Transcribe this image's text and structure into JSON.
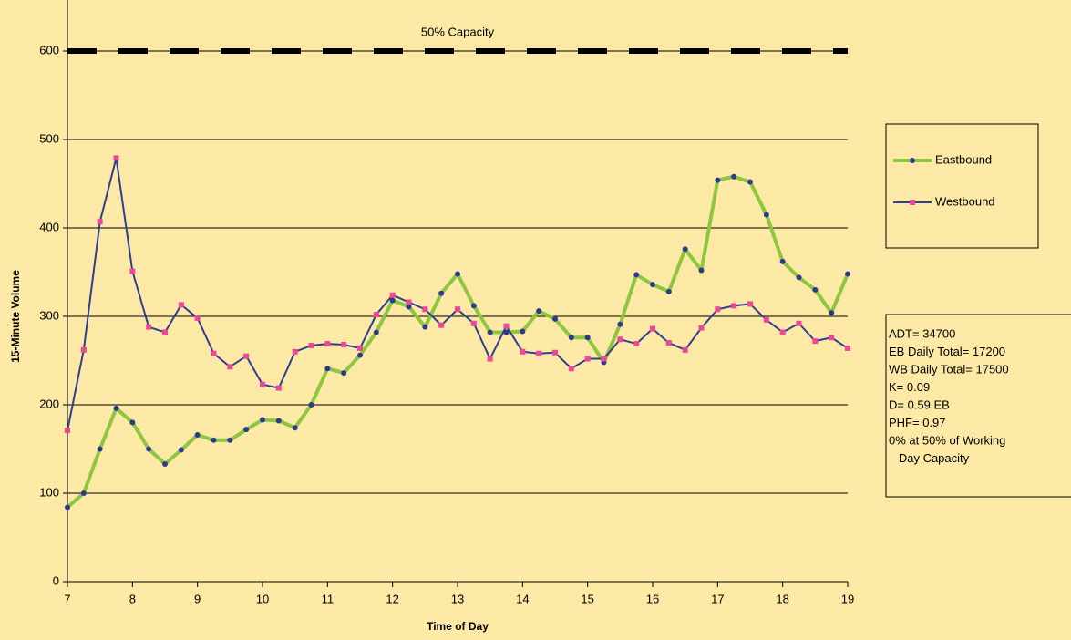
{
  "chart_data": {
    "type": "line",
    "xlabel": "Time of Day",
    "ylabel": "15-Minute Volume",
    "x": [
      7,
      7.25,
      7.5,
      7.75,
      8,
      8.25,
      8.5,
      8.75,
      9,
      9.25,
      9.5,
      9.75,
      10,
      10.25,
      10.5,
      10.75,
      11,
      11.25,
      11.5,
      11.75,
      12,
      12.25,
      12.5,
      12.75,
      13,
      13.25,
      13.5,
      13.75,
      14,
      14.25,
      14.5,
      14.75,
      15,
      15.25,
      15.5,
      15.75,
      16,
      16.25,
      16.5,
      16.75,
      17,
      17.25,
      17.5,
      17.75,
      18,
      18.25,
      18.5,
      18.75,
      19
    ],
    "series": [
      {
        "name": "Eastbound",
        "color": "#8dc63f",
        "marker_color": "#2b3990",
        "line_width": 4,
        "marker": "circle",
        "values": [
          84,
          100,
          150,
          196,
          180,
          150,
          133,
          149,
          166,
          160,
          160,
          172,
          183,
          182,
          174,
          200,
          241,
          236,
          256,
          282,
          318,
          311,
          288,
          326,
          348,
          312,
          282,
          282,
          283,
          306,
          297,
          276,
          276,
          248,
          291,
          347,
          336,
          328,
          376,
          352,
          454,
          458,
          452,
          415,
          362,
          344,
          330,
          304,
          348
        ]
      },
      {
        "name": "Westbound",
        "color": "#2e3f8f",
        "marker_color": "#ec4899",
        "line_width": 2,
        "marker": "square",
        "values": [
          171,
          262,
          407,
          479,
          351,
          288,
          282,
          313,
          298,
          258,
          243,
          255,
          223,
          219,
          260,
          267,
          269,
          268,
          264,
          302,
          324,
          316,
          308,
          290,
          308,
          292,
          252,
          289,
          260,
          258,
          259,
          241,
          252,
          252,
          274,
          269,
          286,
          270,
          262,
          287,
          308,
          312,
          314,
          296,
          282,
          292,
          272,
          276,
          264
        ]
      }
    ],
    "reference_line": {
      "value": 600,
      "label": "50% Capacity",
      "color": "#000000"
    },
    "xlim": [
      7,
      19
    ],
    "xticks": [
      7,
      8,
      9,
      10,
      11,
      12,
      13,
      14,
      15,
      16,
      17,
      18,
      19
    ],
    "ylim": [
      0,
      600
    ],
    "yticks": [
      0,
      100,
      200,
      300,
      400,
      500,
      600
    ],
    "grid": true,
    "legend": "right",
    "annotation": [
      "ADT= 34700",
      "EB Daily Total= 17200",
      "WB Daily Total= 17500",
      "K= 0.09",
      "D= 0.59 EB",
      "PHF= 0.97",
      "0% at 50% of Working",
      "   Day Capacity"
    ]
  }
}
